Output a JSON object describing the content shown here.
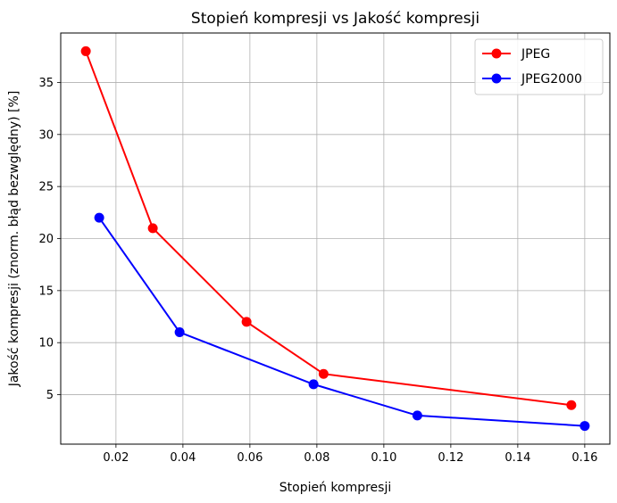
{
  "chart_data": {
    "type": "line",
    "title": "Stopień kompresji vs Jakość kompresji",
    "xlabel": "Stopień kompresji",
    "ylabel": "Jakość kompresji (znorm. błąd bezwględny) [%]",
    "xlim": [
      0.0035,
      0.1675
    ],
    "ylim": [
      0.25,
      39.75
    ],
    "x_ticks": [
      0.02,
      0.04,
      0.06,
      0.08,
      0.1,
      0.12,
      0.14,
      0.16
    ],
    "x_tick_labels": [
      "0.02",
      "0.04",
      "0.06",
      "0.08",
      "0.10",
      "0.12",
      "0.14",
      "0.16"
    ],
    "y_ticks": [
      5,
      10,
      15,
      20,
      25,
      30,
      35
    ],
    "y_tick_labels": [
      "5",
      "10",
      "15",
      "20",
      "25",
      "30",
      "35"
    ],
    "grid": true,
    "legend_position": "top-right",
    "series": [
      {
        "name": "JPEG",
        "color": "#ff0000",
        "marker": "circle",
        "x": [
          0.011,
          0.031,
          0.059,
          0.082,
          0.156
        ],
        "y": [
          38,
          21,
          12,
          7,
          4
        ]
      },
      {
        "name": "JPEG2000",
        "color": "#0000ff",
        "marker": "circle",
        "x": [
          0.015,
          0.039,
          0.079,
          0.11,
          0.16
        ],
        "y": [
          22,
          11,
          6,
          3,
          2
        ]
      }
    ]
  }
}
